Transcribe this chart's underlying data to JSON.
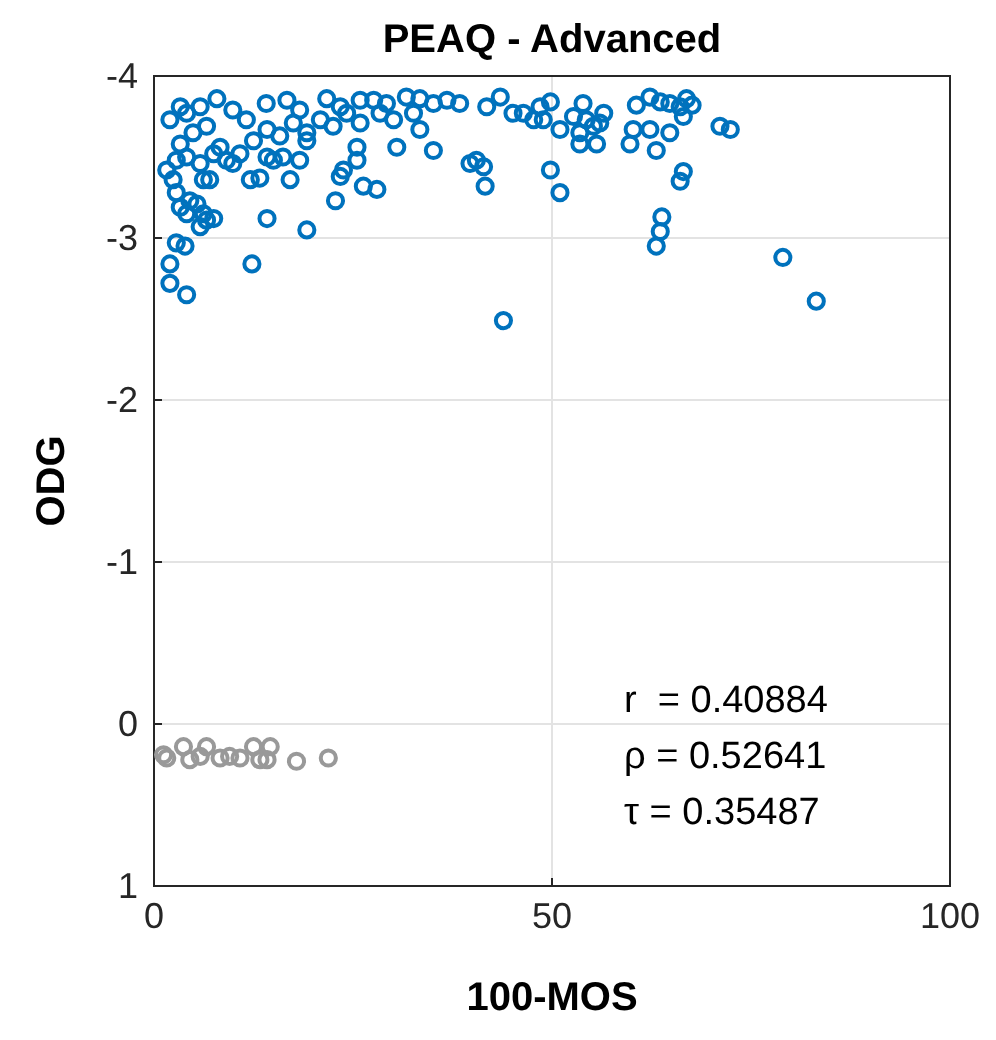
{
  "chart_data": {
    "type": "scatter",
    "title": "PEAQ - Advanced",
    "xlabel": "100-MOS",
    "ylabel": "ODG",
    "xlim": [
      0,
      100
    ],
    "xticks": [
      0,
      50,
      100
    ],
    "ylim": [
      1,
      -4
    ],
    "yticks": [
      -4,
      -3,
      -2,
      -1,
      0,
      1
    ],
    "grid": true,
    "marker": "circle",
    "annotations": [
      "r  = 0.40884",
      "ρ = 0.52641",
      "τ = 0.35487"
    ],
    "series": [
      {
        "color": "#0072bd",
        "x": [
          2.0,
          1.6,
          3.3,
          4.1,
          5.8,
          7.9,
          9.9,
          11.6,
          14.1,
          16.7,
          18.3,
          21.7,
          23.4,
          25.9,
          27.6,
          29.2,
          31.7,
          33.4,
          35.1,
          36.8,
          38.4,
          41.8,
          43.5,
          45.1,
          47.7,
          3.3,
          4.9,
          6.6,
          8.3,
          9.1,
          10.8,
          12.5,
          14.2,
          15.8,
          17.5,
          19.2,
          20.9,
          22.5,
          24.2,
          25.9,
          28.4,
          30.1,
          32.6,
          33.4,
          19.2,
          15.0,
          2.8,
          4.1,
          5.8,
          7.5,
          9.9,
          12.1,
          13.3,
          14.2,
          16.2,
          17.1,
          18.3,
          23.4,
          23.8,
          25.5,
          25.5,
          26.3,
          28.0,
          30.5,
          35.1,
          39.7,
          40.5,
          41.4,
          41.6,
          6.2,
          7.0,
          2.4,
          2.8,
          3.3,
          4.5,
          5.4,
          6.2,
          6.6,
          5.8,
          4.1,
          7.5,
          14.2,
          19.2,
          22.8,
          2.8,
          3.9,
          2.0,
          2.0,
          4.1,
          12.3,
          43.9,
          46.4,
          48.5,
          49.8,
          48.9,
          51.0,
          52.7,
          53.9,
          54.3,
          53.5,
          55.2,
          56.0,
          56.5,
          53.5,
          55.6,
          59.8,
          60.2,
          60.6,
          62.3,
          63.6,
          64.8,
          66.1,
          66.9,
          67.6,
          66.5,
          62.3,
          64.8,
          63.1,
          71.1,
          72.4,
          49.8,
          51.0,
          66.5,
          66.1,
          63.8,
          63.6,
          63.1,
          79.0,
          83.2
        ],
        "values": [
          -3.73,
          -3.42,
          -3.81,
          -3.77,
          -3.81,
          -3.86,
          -3.79,
          -3.73,
          -3.83,
          -3.85,
          -3.79,
          -3.86,
          -3.81,
          -3.85,
          -3.85,
          -3.83,
          -3.87,
          -3.86,
          -3.83,
          -3.85,
          -3.83,
          -3.81,
          -3.87,
          -3.77,
          -3.73,
          -3.58,
          -3.65,
          -3.69,
          -3.56,
          -3.48,
          -3.52,
          -3.6,
          -3.67,
          -3.63,
          -3.71,
          -3.65,
          -3.73,
          -3.69,
          -3.77,
          -3.71,
          -3.77,
          -3.73,
          -3.77,
          -3.67,
          -3.6,
          -3.48,
          -3.48,
          -3.5,
          -3.46,
          -3.52,
          -3.46,
          -3.36,
          -3.37,
          -3.5,
          -3.5,
          -3.36,
          -3.48,
          -3.38,
          -3.42,
          -3.56,
          -3.48,
          -3.32,
          -3.3,
          -3.56,
          -3.54,
          -3.46,
          -3.48,
          -3.44,
          -3.32,
          -3.36,
          -3.36,
          -3.36,
          -3.28,
          -3.19,
          -3.23,
          -3.21,
          -3.15,
          -3.11,
          -3.07,
          -3.15,
          -3.12,
          -3.12,
          -3.05,
          -3.23,
          -2.97,
          -2.95,
          -2.84,
          -2.72,
          -2.65,
          -2.84,
          -2.49,
          -3.77,
          -3.81,
          -3.84,
          -3.73,
          -3.67,
          -3.75,
          -3.83,
          -3.73,
          -3.65,
          -3.69,
          -3.71,
          -3.77,
          -3.58,
          -3.58,
          -3.58,
          -3.67,
          -3.82,
          -3.87,
          -3.84,
          -3.83,
          -3.81,
          -3.86,
          -3.82,
          -3.75,
          -3.67,
          -3.65,
          -3.54,
          -3.69,
          -3.67,
          -3.42,
          -3.28,
          -3.41,
          -3.35,
          -3.13,
          -3.04,
          -2.95,
          -2.88,
          -2.61
        ]
      },
      {
        "color": "#999999",
        "x": [
          1.2,
          1.6,
          2.8,
          3.7,
          4.5,
          5.8,
          6.6,
          7.5,
          8.3,
          9.5,
          10.8,
          11.6,
          12.5,
          13.3,
          14.2,
          14.6,
          17.9,
          21.9
        ],
        "values": [
          0.19,
          0.21,
          null,
          0.14,
          0.22,
          0.2,
          0.14,
          null,
          0.21,
          0.2,
          0.21,
          null,
          0.14,
          0.22,
          0.22,
          0.14,
          0.23,
          0.21
        ]
      }
    ]
  }
}
